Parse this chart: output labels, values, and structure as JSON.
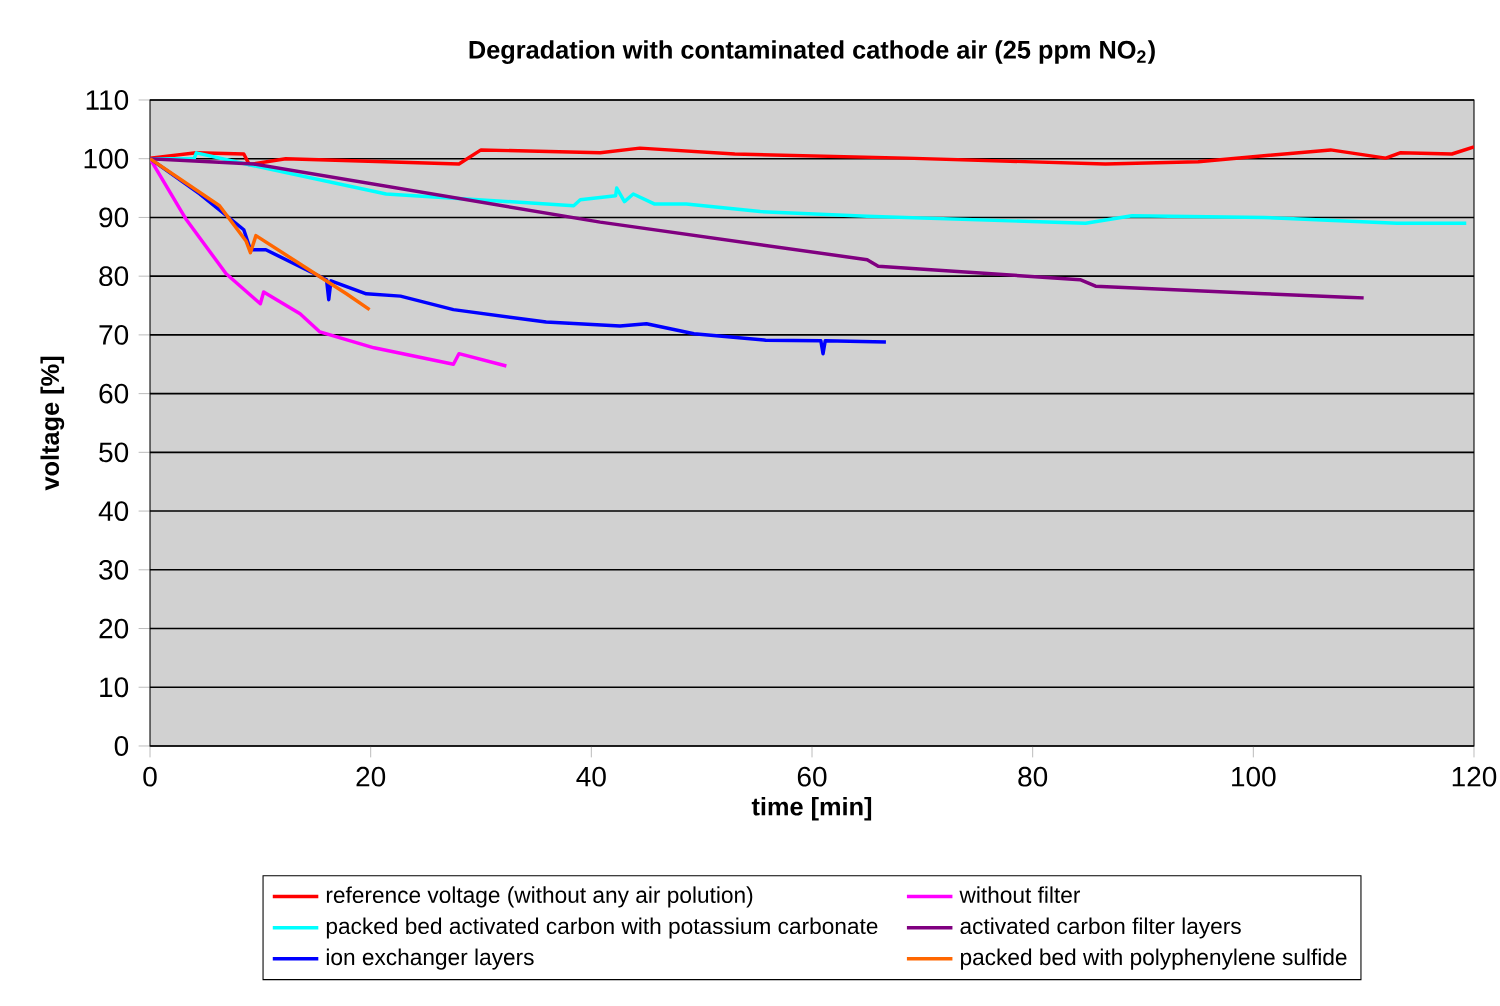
{
  "chart_data": {
    "type": "line",
    "title": "Degradation with contaminated cathode air (25 ppm NO$_{2}$)",
    "xlabel": "time [min]",
    "ylabel": "voltage [%]",
    "xlim": [
      0,
      120
    ],
    "ylim": [
      0,
      110
    ],
    "xticks": [
      0,
      20,
      40,
      60,
      80,
      100,
      120
    ],
    "yticks": [
      0,
      10,
      20,
      30,
      40,
      50,
      60,
      70,
      80,
      90,
      100,
      110
    ],
    "grid": "y",
    "legend": "bottom",
    "marker": "none",
    "line_style": "solid",
    "series": [
      {
        "name": "reference voltage (without any air polution)",
        "color": "#ff0000",
        "x": [
          0,
          4.2,
          8.5,
          9,
          12.3,
          28,
          30,
          40.8,
          44.4,
          53,
          68.5,
          86.6,
          95,
          107,
          112,
          113.3,
          118,
          120
        ],
        "values": [
          100.1,
          101,
          100.8,
          99,
          100,
          99.1,
          101.5,
          101,
          101.8,
          100.8,
          100.1,
          99.1,
          99.5,
          101.5,
          100.1,
          101,
          100.8,
          102
        ]
      },
      {
        "name": "without filter",
        "color": "#ff00ff",
        "x": [
          0,
          3.3,
          6.9,
          10,
          10.3,
          13.6,
          15.4,
          20.3,
          27.5,
          28,
          32.3
        ],
        "values": [
          100,
          89.6,
          80.4,
          75.3,
          77.3,
          73.6,
          70.5,
          67.8,
          65,
          66.8,
          64.7
        ]
      },
      {
        "name": "packed bed activated carbon with potassium carbonate",
        "color": "#00ffff",
        "x": [
          0,
          4,
          4.2,
          9.4,
          21.4,
          38.4,
          39,
          42.2,
          42.3,
          43,
          43.8,
          45.7,
          48.6,
          55.3,
          65,
          84.8,
          89,
          101,
          113,
          119.3
        ],
        "values": [
          100,
          100,
          101,
          98.8,
          94,
          92,
          93,
          93.7,
          95,
          92.7,
          94,
          92.3,
          92.3,
          91,
          90.2,
          89,
          90.3,
          90,
          89,
          89
        ]
      },
      {
        "name": "activated carbon filter layers",
        "color": "#800080",
        "x": [
          0,
          9.4,
          40.8,
          65,
          66,
          84.3,
          85.7,
          101,
          110
        ],
        "values": [
          100,
          99.1,
          89.2,
          82.8,
          81.7,
          79.4,
          78.3,
          77,
          76.3
        ]
      },
      {
        "name": "ion exchanger layers",
        "color": "#0000ff",
        "x": [
          0,
          4.5,
          8.5,
          9.1,
          10.5,
          16,
          16.2,
          16.4,
          19.6,
          22.7,
          27.5,
          35.9,
          42.6,
          45,
          49.3,
          55.8,
          60.8,
          61,
          61.2,
          66.7
        ],
        "values": [
          100,
          94,
          87.9,
          84.5,
          84.5,
          79.4,
          76,
          79.2,
          77,
          76.6,
          74.3,
          72.2,
          71.5,
          71.9,
          70.2,
          69.1,
          69,
          66.8,
          69,
          68.8
        ]
      },
      {
        "name": "packed bed with polyphenylene sulfide",
        "color": "#ff6600",
        "x": [
          0,
          6.3,
          8.7,
          9.1,
          9.6,
          13,
          17.8,
          19.9
        ],
        "values": [
          100,
          92,
          86,
          84,
          86.9,
          82.8,
          77,
          74.3
        ]
      }
    ]
  }
}
